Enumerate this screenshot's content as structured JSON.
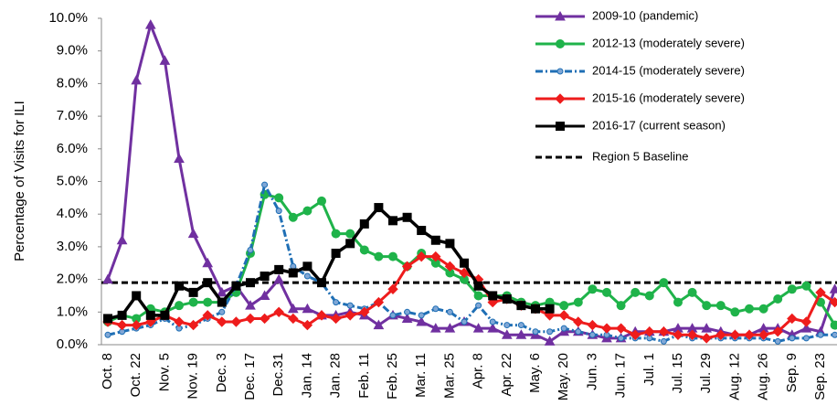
{
  "chart_data": {
    "type": "line",
    "y_label": "Percentage of Visits for ILI",
    "categories": [
      "Oct. 8",
      null,
      "Oct. 22",
      null,
      "Nov. 5",
      null,
      "Nov. 19",
      null,
      "Dec. 3",
      null,
      "Dec. 17",
      null,
      "Dec.31",
      null,
      "Jan. 14",
      null,
      "Jan. 28",
      null,
      "Feb. 11",
      null,
      "Feb. 25",
      null,
      "Mar. 11",
      null,
      "Mar. 25",
      null,
      "Apr. 8",
      null,
      "Apr. 22",
      null,
      "May. 6",
      null,
      "May. 20",
      null,
      "Jun. 3",
      null,
      "Jun. 17",
      null,
      "Jul. 1",
      null,
      "Jul. 15",
      null,
      "Jul. 29",
      null,
      "Aug. 12",
      null,
      "Aug. 26",
      null,
      "Sep. 9",
      null,
      "Sep. 23",
      null
    ],
    "ylim": [
      0,
      10
    ],
    "yticks": [
      {
        "value": 0,
        "label": "0.0%"
      },
      {
        "value": 1,
        "label": "1.0%"
      },
      {
        "value": 2,
        "label": "2.0%"
      },
      {
        "value": 3,
        "label": "3.0%"
      },
      {
        "value": 4,
        "label": "4.0%"
      },
      {
        "value": 5,
        "label": "5.0%"
      },
      {
        "value": 6,
        "label": "6.0%"
      },
      {
        "value": 7,
        "label": "7.0%"
      },
      {
        "value": 8,
        "label": "8.0%"
      },
      {
        "value": 9,
        "label": "9.0%"
      },
      {
        "value": 10,
        "label": "10.0%"
      }
    ],
    "legend": "top-right",
    "series": [
      {
        "name": "2009-10 (pandemic)",
        "color": "#7030a0",
        "marker": "triangle",
        "dash": "solid",
        "values": [
          2.0,
          3.2,
          8.1,
          9.8,
          8.7,
          5.7,
          3.4,
          2.5,
          1.6,
          1.8,
          1.2,
          1.5,
          2.0,
          1.1,
          1.1,
          0.9,
          0.9,
          1.0,
          0.9,
          0.6,
          0.9,
          0.8,
          0.7,
          0.5,
          0.5,
          0.7,
          0.5,
          0.5,
          0.3,
          0.3,
          0.3,
          0.1,
          0.4,
          0.4,
          0.3,
          0.2,
          0.2,
          0.4,
          0.4,
          0.4,
          0.5,
          0.5,
          0.5,
          0.4,
          0.3,
          0.3,
          0.5,
          0.5,
          0.3,
          0.5,
          0.4,
          1.7
        ]
      },
      {
        "name": "2012-13 (moderately severe)",
        "color": "#1fb34a",
        "marker": "circle",
        "dash": "solid",
        "values": [
          0.7,
          0.9,
          0.8,
          1.1,
          1.0,
          1.2,
          1.3,
          1.3,
          1.3,
          1.6,
          2.8,
          4.6,
          4.5,
          3.9,
          4.1,
          4.4,
          3.4,
          3.4,
          2.9,
          2.7,
          2.7,
          2.4,
          2.8,
          2.5,
          2.2,
          2.0,
          1.5,
          1.5,
          1.5,
          1.3,
          1.2,
          1.3,
          1.2,
          1.3,
          1.7,
          1.6,
          1.2,
          1.6,
          1.5,
          1.9,
          1.3,
          1.6,
          1.2,
          1.2,
          1.0,
          1.1,
          1.1,
          1.4,
          1.7,
          1.8,
          1.3,
          0.6
        ]
      },
      {
        "name": "2014-15 (moderately severe)",
        "color": "#1f6fb5",
        "marker": "dot",
        "dash": "dashdot",
        "values": [
          0.3,
          0.4,
          0.5,
          0.6,
          0.8,
          0.5,
          0.6,
          0.8,
          1.0,
          1.8,
          2.9,
          4.9,
          4.1,
          2.4,
          2.1,
          1.9,
          1.3,
          1.2,
          1.1,
          1.3,
          0.9,
          1.0,
          0.9,
          1.1,
          1.0,
          0.7,
          1.2,
          0.7,
          0.6,
          0.6,
          0.4,
          0.4,
          0.5,
          0.4,
          0.3,
          0.3,
          0.2,
          0.2,
          0.2,
          0.1,
          0.3,
          0.2,
          0.2,
          0.2,
          0.2,
          0.2,
          0.2,
          0.1,
          0.2,
          0.2,
          0.3,
          0.3
        ]
      },
      {
        "name": "2015-16 (moderately severe)",
        "color": "#ee1c1c",
        "marker": "diamond",
        "dash": "solid",
        "values": [
          0.7,
          0.6,
          0.6,
          0.7,
          0.9,
          0.7,
          0.6,
          0.9,
          0.7,
          0.7,
          0.8,
          0.8,
          1.0,
          0.8,
          0.6,
          0.9,
          0.8,
          0.9,
          1.0,
          1.3,
          1.7,
          2.4,
          2.7,
          2.7,
          2.4,
          2.2,
          2.0,
          1.3,
          1.4,
          1.2,
          1.1,
          0.9,
          0.9,
          0.7,
          0.6,
          0.5,
          0.5,
          0.3,
          0.4,
          0.4,
          0.3,
          0.3,
          0.2,
          0.3,
          0.3,
          0.3,
          0.3,
          0.4,
          0.8,
          0.7,
          1.6,
          1.3
        ]
      },
      {
        "name": "2016-17 (current season)",
        "color": "#000000",
        "marker": "square",
        "dash": "solid",
        "values": [
          0.8,
          0.9,
          1.5,
          0.9,
          0.9,
          1.8,
          1.6,
          1.9,
          1.3,
          1.8,
          1.9,
          2.1,
          2.3,
          2.2,
          2.4,
          1.9,
          2.8,
          3.1,
          3.7,
          4.2,
          3.8,
          3.9,
          3.5,
          3.2,
          3.1,
          2.5,
          1.8,
          1.5,
          1.4,
          1.2,
          1.1,
          1.1,
          null,
          null,
          null,
          null,
          null,
          null,
          null,
          null,
          null,
          null,
          null,
          null,
          null,
          null,
          null,
          null,
          null,
          null,
          null,
          null
        ]
      }
    ],
    "baseline": {
      "name": "Region 5 Baseline",
      "value": 1.9,
      "color": "#000000"
    }
  }
}
